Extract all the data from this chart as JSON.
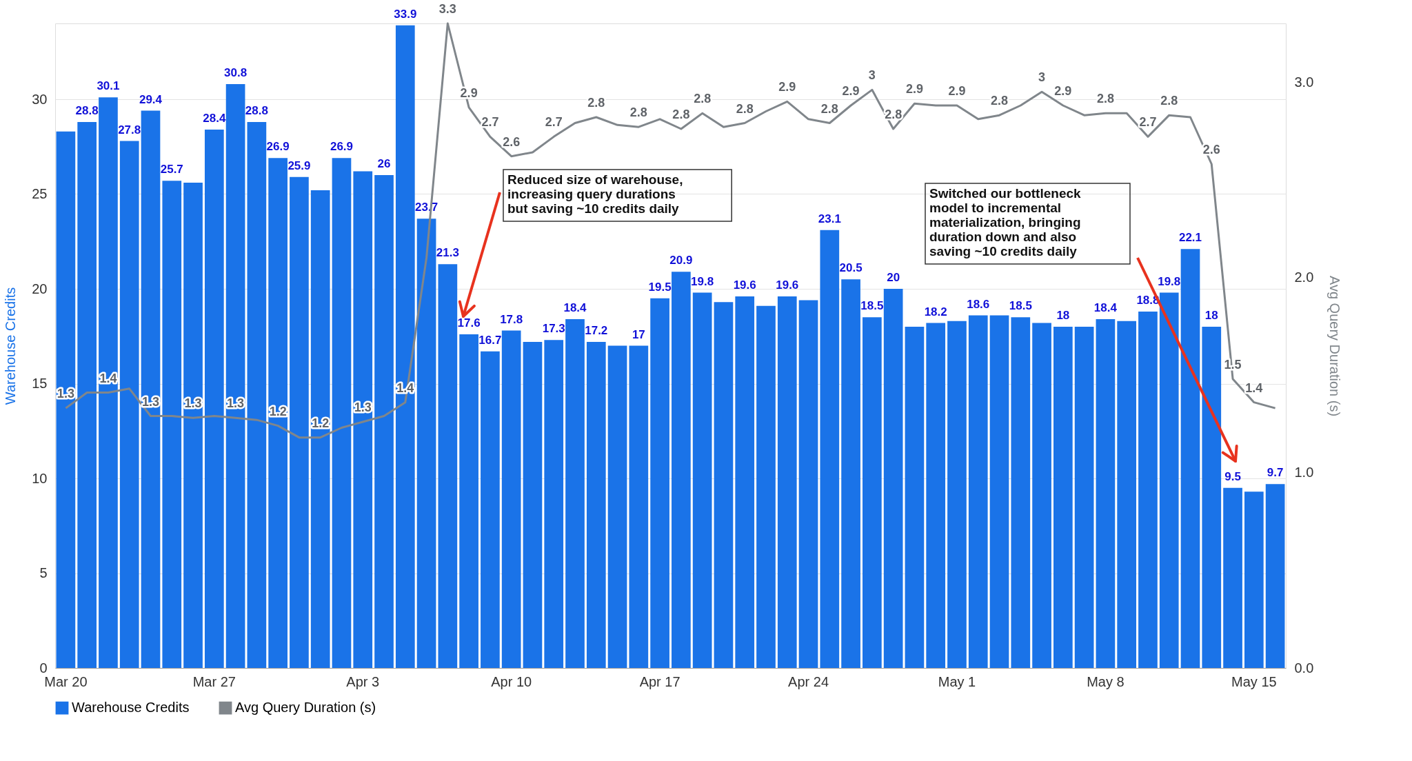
{
  "chart_data": {
    "type": "bar",
    "categories": [
      "Mar 20",
      null,
      null,
      null,
      null,
      null,
      null,
      "Mar 27",
      null,
      null,
      null,
      null,
      null,
      null,
      "Apr 3",
      null,
      null,
      null,
      null,
      null,
      null,
      "Apr 10",
      null,
      null,
      null,
      null,
      null,
      null,
      "Apr 17",
      null,
      null,
      null,
      null,
      null,
      null,
      "Apr 24",
      null,
      null,
      null,
      null,
      null,
      null,
      "May 1",
      null,
      null,
      null,
      null,
      null,
      null,
      "May 8",
      null,
      null,
      null,
      null,
      null,
      null,
      "May 15",
      null
    ],
    "series": [
      {
        "name": "Warehouse Credits",
        "color": "#1a73e8",
        "values": [
          28.3,
          28.8,
          30.1,
          27.8,
          29.4,
          25.7,
          25.6,
          28.4,
          30.8,
          28.8,
          26.9,
          25.9,
          25.2,
          26.9,
          26.2,
          26,
          33.9,
          23.7,
          21.3,
          17.6,
          16.7,
          17.8,
          17.2,
          17.3,
          18.4,
          17.2,
          17.0,
          17,
          19.5,
          20.9,
          19.8,
          19.3,
          19.6,
          19.1,
          19.6,
          19.4,
          23.1,
          20.5,
          18.5,
          20,
          18.0,
          18.2,
          18.3,
          18.6,
          18.6,
          18.5,
          18.2,
          18,
          18.0,
          18.4,
          18.3,
          18.8,
          19.8,
          22.1,
          18,
          9.5,
          9.3,
          9.7
        ],
        "value_labels": [
          null,
          "28.8",
          "30.1",
          "27.8",
          "29.4",
          "25.7",
          null,
          "28.4",
          "30.8",
          "28.8",
          "26.9",
          "25.9",
          null,
          "26.9",
          null,
          "26",
          "33.9",
          "23.7",
          "21.3",
          "17.6",
          "16.7",
          "17.8",
          null,
          "17.3",
          "18.4",
          "17.2",
          null,
          "17",
          "19.5",
          "20.9",
          "19.8",
          null,
          "19.6",
          null,
          "19.6",
          null,
          "23.1",
          "20.5",
          "18.5",
          "20",
          null,
          "18.2",
          null,
          "18.6",
          null,
          "18.5",
          null,
          "18",
          null,
          "18.4",
          null,
          "18.8",
          "19.8",
          "22.1",
          "18",
          "9.5",
          null,
          "9.7"
        ]
      },
      {
        "name": "Avg Query Duration (s)",
        "type": "line",
        "axis": "y2",
        "color": "#80868b",
        "values": [
          1.33,
          1.41,
          1.41,
          1.43,
          1.29,
          1.29,
          1.28,
          1.29,
          1.28,
          1.27,
          1.24,
          1.18,
          1.18,
          1.23,
          1.26,
          1.29,
          1.36,
          2.1,
          3.3,
          2.87,
          2.72,
          2.62,
          2.64,
          2.72,
          2.79,
          2.82,
          2.78,
          2.77,
          2.81,
          2.76,
          2.84,
          2.77,
          2.79,
          2.85,
          2.9,
          2.81,
          2.79,
          2.88,
          2.96,
          2.76,
          2.89,
          2.88,
          2.88,
          2.81,
          2.83,
          2.88,
          2.95,
          2.88,
          2.83,
          2.84,
          2.84,
          2.72,
          2.83,
          2.82,
          2.58,
          1.48,
          1.36,
          1.33
        ],
        "value_labels": [
          "1.3",
          null,
          "1.4",
          null,
          "1.3",
          null,
          "1.3",
          null,
          "1.3",
          null,
          "1.2",
          null,
          "1.2",
          null,
          "1.3",
          null,
          "1.4",
          null,
          "3.3",
          "2.9",
          "2.7",
          "2.6",
          null,
          "2.7",
          null,
          "2.8",
          null,
          "2.8",
          null,
          "2.8",
          "2.8",
          null,
          "2.8",
          null,
          "2.9",
          null,
          "2.8",
          "2.9",
          "3",
          "2.8",
          "2.9",
          null,
          "2.9",
          null,
          "2.8",
          null,
          "3",
          "2.9",
          null,
          "2.8",
          null,
          "2.7",
          "2.8",
          null,
          "2.6",
          "1.5",
          "1.4",
          null
        ]
      }
    ],
    "ylabel": "Warehouse Credits",
    "y2label": "Avg Query Duration (s)",
    "ylim": [
      0,
      34
    ],
    "yticks": [
      0,
      5,
      10,
      15,
      20,
      25,
      30
    ],
    "y2lim": [
      0,
      3.3
    ],
    "y2ticks": [
      {
        "value": 0,
        "label": "0.0"
      },
      {
        "value": 1,
        "label": "1.0"
      },
      {
        "value": 2,
        "label": "2.0"
      },
      {
        "value": 3,
        "label": "3.0"
      }
    ],
    "grid": "y",
    "legend": "bottom",
    "annotations": [
      "Reduced size of warehouse,\nincreasing query durations\nbut saving ~10 credits daily",
      "Switched our bottleneck\nmodel to incremental\nmaterialization, bringing\nduration down and also\nsaving ~10 credits daily"
    ]
  }
}
